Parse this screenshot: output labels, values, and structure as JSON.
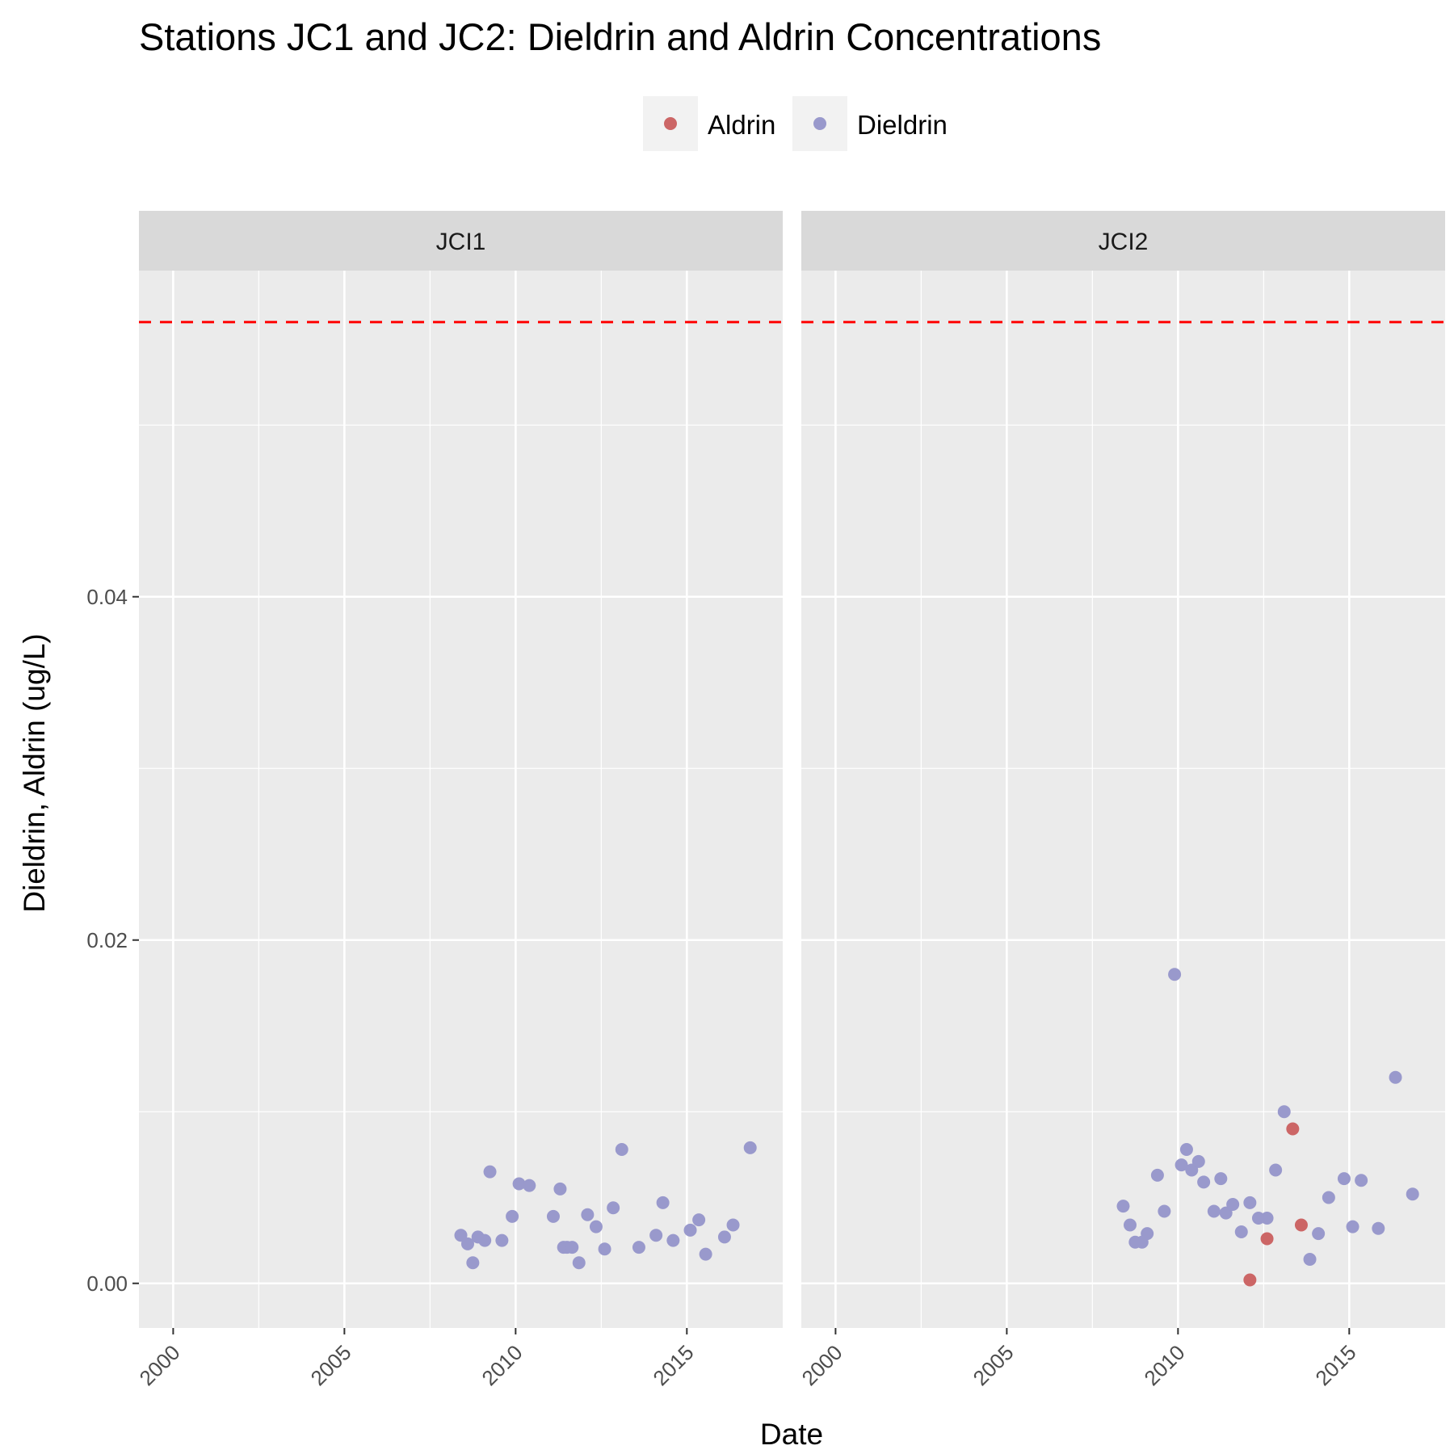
{
  "chart_data": {
    "type": "scatter",
    "title": "Stations JC1 and JC2: Dieldrin and Aldrin Concentrations",
    "xlabel": "Date",
    "ylabel": "Dieldrin, Aldrin (ug/L)",
    "xlim": [
      1999.0,
      2017.8
    ],
    "ylim": [
      -0.0026,
      0.059
    ],
    "x_ticks": [
      2000,
      2005,
      2010,
      2015
    ],
    "x_tick_labels": [
      "2000",
      "2005",
      "2010",
      "2015"
    ],
    "y_ticks": [
      0,
      0.02,
      0.04
    ],
    "y_tick_labels": [
      "0.00",
      "0.02",
      "0.04"
    ],
    "reference_line": {
      "y": 0.056,
      "color": "#ff0000",
      "style": "dashed"
    },
    "legend": {
      "position": "top",
      "entries": [
        {
          "label": "Aldrin",
          "color": "#cc6666"
        },
        {
          "label": "Dieldrin",
          "color": "#9999cc"
        }
      ]
    },
    "grid": true,
    "panels": [
      {
        "label": "JCI1",
        "series": [
          {
            "name": "Dieldrin",
            "color": "#9999cc",
            "points": [
              [
                2008.4,
                0.0028
              ],
              [
                2008.6,
                0.0023
              ],
              [
                2008.75,
                0.0012
              ],
              [
                2008.9,
                0.0027
              ],
              [
                2009.1,
                0.0025
              ],
              [
                2009.25,
                0.0065
              ],
              [
                2009.6,
                0.0025
              ],
              [
                2009.9,
                0.0039
              ],
              [
                2010.1,
                0.0058
              ],
              [
                2010.4,
                0.0057
              ],
              [
                2011.1,
                0.0039
              ],
              [
                2011.3,
                0.0055
              ],
              [
                2011.4,
                0.0021
              ],
              [
                2011.5,
                0.0021
              ],
              [
                2011.65,
                0.0021
              ],
              [
                2011.85,
                0.0012
              ],
              [
                2012.1,
                0.004
              ],
              [
                2012.35,
                0.0033
              ],
              [
                2012.6,
                0.002
              ],
              [
                2012.85,
                0.0044
              ],
              [
                2013.1,
                0.0078
              ],
              [
                2013.6,
                0.0021
              ],
              [
                2014.1,
                0.0028
              ],
              [
                2014.3,
                0.0047
              ],
              [
                2014.6,
                0.0025
              ],
              [
                2015.1,
                0.0031
              ],
              [
                2015.35,
                0.0037
              ],
              [
                2015.55,
                0.0017
              ],
              [
                2016.1,
                0.0027
              ],
              [
                2016.35,
                0.0034
              ],
              [
                2016.85,
                0.0079
              ]
            ]
          }
        ]
      },
      {
        "label": "JCI2",
        "series": [
          {
            "name": "Dieldrin",
            "color": "#9999cc",
            "points": [
              [
                2008.4,
                0.0045
              ],
              [
                2008.6,
                0.0034
              ],
              [
                2008.75,
                0.0024
              ],
              [
                2008.95,
                0.0024
              ],
              [
                2009.1,
                0.0029
              ],
              [
                2009.4,
                0.0063
              ],
              [
                2009.6,
                0.0042
              ],
              [
                2009.9,
                0.018
              ],
              [
                2010.1,
                0.0069
              ],
              [
                2010.25,
                0.0078
              ],
              [
                2010.4,
                0.0066
              ],
              [
                2010.6,
                0.0071
              ],
              [
                2010.75,
                0.0059
              ],
              [
                2011.05,
                0.0042
              ],
              [
                2011.25,
                0.0061
              ],
              [
                2011.4,
                0.0041
              ],
              [
                2011.6,
                0.0046
              ],
              [
                2011.85,
                0.003
              ],
              [
                2012.1,
                0.0047
              ],
              [
                2012.35,
                0.0038
              ],
              [
                2012.6,
                0.0038
              ],
              [
                2012.85,
                0.0066
              ],
              [
                2013.1,
                0.01
              ],
              [
                2013.85,
                0.0014
              ],
              [
                2014.1,
                0.0029
              ],
              [
                2014.4,
                0.005
              ],
              [
                2014.85,
                0.0061
              ],
              [
                2015.1,
                0.0033
              ],
              [
                2015.35,
                0.006
              ],
              [
                2015.85,
                0.0032
              ],
              [
                2016.35,
                0.012
              ],
              [
                2016.85,
                0.0052
              ]
            ]
          },
          {
            "name": "Aldrin",
            "color": "#cc6666",
            "points": [
              [
                2012.1,
                0.0002
              ],
              [
                2012.6,
                0.0026
              ],
              [
                2013.35,
                0.009
              ],
              [
                2013.6,
                0.0034
              ]
            ]
          }
        ]
      }
    ]
  }
}
